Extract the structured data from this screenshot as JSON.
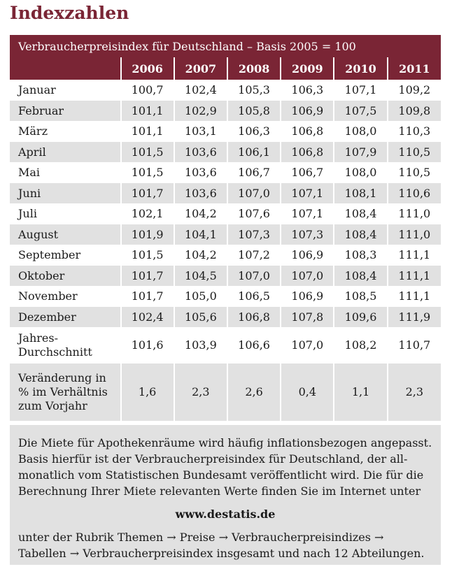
{
  "title": "Indexzahlen",
  "table": {
    "caption": "Verbraucherpreisindex für Deutschland – Basis 2005 = 100",
    "years": [
      "2006",
      "2007",
      "2008",
      "2009",
      "2010",
      "2011"
    ],
    "rows": [
      {
        "label": "Januar",
        "values": [
          "100,7",
          "102,4",
          "105,3",
          "106,3",
          "107,1",
          "109,2"
        ]
      },
      {
        "label": "Februar",
        "values": [
          "101,1",
          "102,9",
          "105,8",
          "106,9",
          "107,5",
          "109,8"
        ]
      },
      {
        "label": "März",
        "values": [
          "101,1",
          "103,1",
          "106,3",
          "106,8",
          "108,0",
          "110,3"
        ]
      },
      {
        "label": "April",
        "values": [
          "101,5",
          "103,6",
          "106,1",
          "106,8",
          "107,9",
          "110,5"
        ]
      },
      {
        "label": "Mai",
        "values": [
          "101,5",
          "103,6",
          "106,7",
          "106,7",
          "108,0",
          "110,5"
        ]
      },
      {
        "label": "Juni",
        "values": [
          "101,7",
          "103,6",
          "107,0",
          "107,1",
          "108,1",
          "110,6"
        ]
      },
      {
        "label": "Juli",
        "values": [
          "102,1",
          "104,2",
          "107,6",
          "107,1",
          "108,4",
          "111,0"
        ]
      },
      {
        "label": "August",
        "values": [
          "101,9",
          "104,1",
          "107,3",
          "107,3",
          "108,4",
          "111,0"
        ]
      },
      {
        "label": "September",
        "values": [
          "101,5",
          "104,2",
          "107,2",
          "106,9",
          "108,3",
          "111,1"
        ]
      },
      {
        "label": "Oktober",
        "values": [
          "101,7",
          "104,5",
          "107,0",
          "107,0",
          "108,4",
          "111,1"
        ]
      },
      {
        "label": "November",
        "values": [
          "101,7",
          "105,0",
          "106,5",
          "106,9",
          "108,5",
          "111,1"
        ]
      },
      {
        "label": "Dezember",
        "values": [
          "102,4",
          "105,6",
          "106,8",
          "107,8",
          "109,6",
          "111,9"
        ]
      }
    ],
    "average": {
      "label_line1": "Jahres-",
      "label_line2": "Durchschnitt",
      "values": [
        "101,6",
        "103,9",
        "106,6",
        "107,0",
        "108,2",
        "110,7"
      ]
    },
    "change": {
      "label_line1": "Veränderung in",
      "label_line2": "% im Verhältnis",
      "label_line3": "zum Vorjahr",
      "values": [
        "1,6",
        "2,3",
        "2,6",
        "0,4",
        "1,1",
        "2,3"
      ]
    }
  },
  "note": {
    "line1": "Die Miete für Apothekenräume wird häufig inflationsbezogen angepasst.",
    "line2": "Basis hierfür ist der Verbraucherpreisindex für Deutschland, der all-",
    "line3": "monatlich vom Statistischen Bundesamt veröffentlicht wird. Die für die",
    "line4": "Berechnung Ihrer Miete relevanten Werte finden Sie im Internet unter",
    "url": "www.destatis.de",
    "line5": "unter der Rubrik Themen → Preise → Verbraucherpreisindizes →",
    "line6": "Tabellen → Verbraucherpreisindex insgesamt und nach 12 Abteilungen."
  },
  "colors": {
    "accent": "#7a2535",
    "row_stripe": "#e1e1e1"
  }
}
